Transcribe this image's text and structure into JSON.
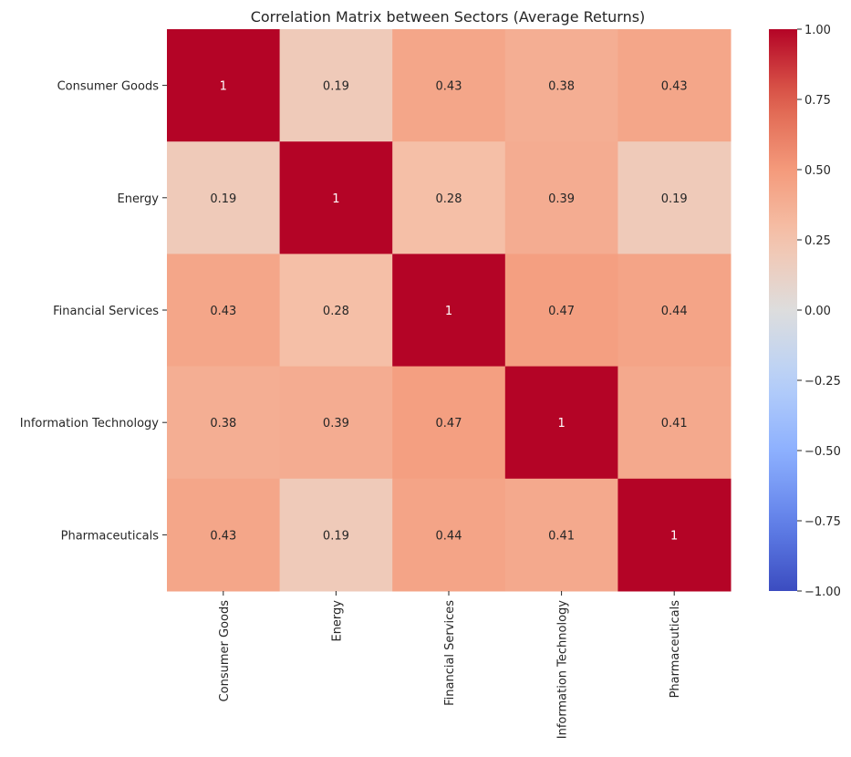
{
  "chart_data": {
    "type": "heatmap",
    "title": "Correlation Matrix between Sectors (Average Returns)",
    "xlabel": "",
    "ylabel": "",
    "row_labels": [
      "Consumer Goods",
      "Energy",
      "Financial Services",
      "Information Technology",
      "Pharmaceuticals"
    ],
    "col_labels": [
      "Consumer Goods",
      "Energy",
      "Financial Services",
      "Information Technology",
      "Pharmaceuticals"
    ],
    "values": [
      [
        1,
        0.19,
        0.43,
        0.38,
        0.43
      ],
      [
        0.19,
        1,
        0.28,
        0.39,
        0.19
      ],
      [
        0.43,
        0.28,
        1,
        0.47,
        0.44
      ],
      [
        0.38,
        0.39,
        0.47,
        1,
        0.41
      ],
      [
        0.43,
        0.19,
        0.44,
        0.41,
        1
      ]
    ],
    "colormap": "coolwarm",
    "vmin": -1.0,
    "vmax": 1.0,
    "colorbar_ticks": [
      "1.00",
      "0.75",
      "0.50",
      "0.25",
      "0.00",
      "−0.25",
      "−0.50",
      "−0.75",
      "−1.00"
    ],
    "colorbar_tick_values": [
      1.0,
      0.75,
      0.5,
      0.25,
      0.0,
      -0.25,
      -0.5,
      -0.75,
      -1.0
    ],
    "annotations": true
  }
}
